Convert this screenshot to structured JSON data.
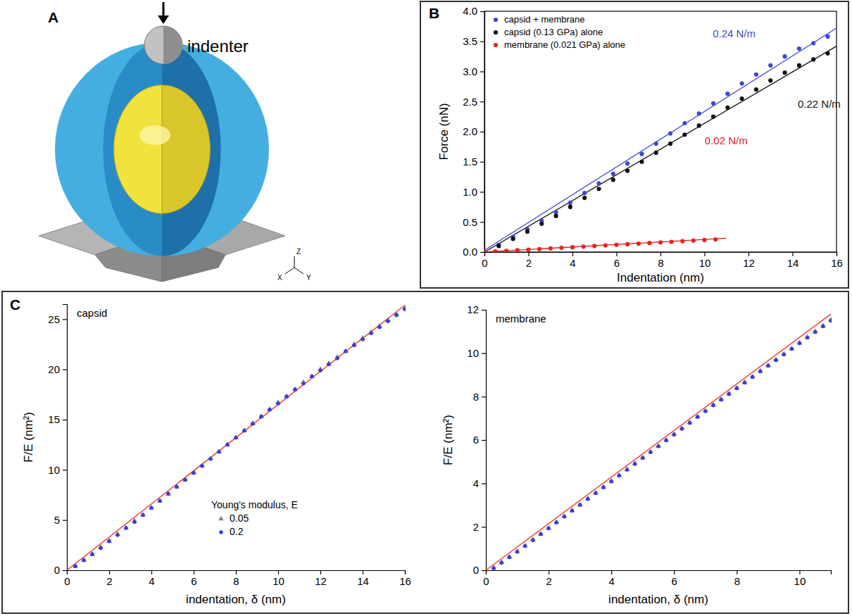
{
  "panel_letters": [
    "A",
    "B",
    "C"
  ],
  "diagram": {
    "label": "indenter",
    "axes": [
      "X",
      "Y",
      "Z"
    ]
  },
  "chart_data": [
    {
      "type": "scatter",
      "x_label": "Indentation (nm)",
      "y_label": "Force (nN)",
      "xlim": [
        0,
        16
      ],
      "ylim": [
        0,
        4
      ],
      "xticks": [
        0,
        2,
        4,
        6,
        8,
        10,
        12,
        14,
        16
      ],
      "yticks": [
        {
          "value": 0,
          "label": "0.0"
        },
        {
          "value": 0.5,
          "label": "0.5"
        },
        {
          "value": 1,
          "label": "1.0"
        },
        {
          "value": 1.5,
          "label": "1.5"
        },
        {
          "value": 2,
          "label": "2.0"
        },
        {
          "value": 2.5,
          "label": "2.5"
        },
        {
          "value": 3,
          "label": "3.0"
        },
        {
          "value": 3.5,
          "label": "3.5"
        },
        {
          "value": 4,
          "label": "4.0"
        }
      ],
      "legend": "top-left",
      "series": [
        {
          "name": "capsid + membrane",
          "color": "#3f48cc",
          "marker": "circle",
          "x": [
            0.65,
            1.3,
            1.95,
            2.6,
            3.25,
            3.9,
            4.55,
            5.2,
            5.85,
            6.5,
            7.15,
            7.8,
            8.45,
            9.1,
            9.75,
            10.4,
            11.05,
            11.7,
            12.35,
            13.0,
            13.65,
            14.3,
            14.95,
            15.6
          ],
          "values": [
            0.12,
            0.25,
            0.38,
            0.52,
            0.66,
            0.82,
            0.98,
            1.14,
            1.3,
            1.47,
            1.63,
            1.8,
            1.97,
            2.14,
            2.3,
            2.47,
            2.63,
            2.8,
            2.95,
            3.1,
            3.25,
            3.38,
            3.47,
            3.58
          ],
          "fit": {
            "x": [
              0,
              16
            ],
            "values": [
              0.03,
              3.72
            ],
            "label": "0.24 N/m"
          }
        },
        {
          "name": "capsid (0.13 GPa) alone",
          "color": "#111111",
          "marker": "circle",
          "x": [
            0.65,
            1.3,
            1.95,
            2.6,
            3.25,
            3.9,
            4.55,
            5.2,
            5.85,
            6.5,
            7.15,
            7.8,
            8.45,
            9.1,
            9.75,
            10.4,
            11.05,
            11.7,
            12.35,
            13.0,
            13.65,
            14.3,
            14.95,
            15.6
          ],
          "values": [
            0.1,
            0.22,
            0.34,
            0.47,
            0.6,
            0.75,
            0.9,
            1.05,
            1.2,
            1.35,
            1.5,
            1.65,
            1.8,
            1.95,
            2.1,
            2.25,
            2.4,
            2.55,
            2.7,
            2.85,
            2.98,
            3.1,
            3.2,
            3.3
          ],
          "fit": {
            "x": [
              0,
              16
            ],
            "values": [
              0,
              3.42
            ],
            "label": "0.22 N/m"
          }
        },
        {
          "name": "membrane (0.021 GPa) alone",
          "color": "#e8231f",
          "marker": "circle",
          "x": [
            0,
            0.5,
            1,
            1.5,
            2,
            2.5,
            3,
            3.5,
            4,
            4.5,
            5,
            5.5,
            6,
            6.5,
            7,
            7.5,
            8,
            8.5,
            9,
            9.5,
            10,
            10.5
          ],
          "values": [
            0,
            0.01,
            0.02,
            0.03,
            0.04,
            0.05,
            0.06,
            0.07,
            0.08,
            0.09,
            0.1,
            0.11,
            0.12,
            0.13,
            0.14,
            0.15,
            0.16,
            0.17,
            0.18,
            0.19,
            0.2,
            0.21
          ],
          "fit": {
            "x": [
              0,
              11
            ],
            "values": [
              0,
              0.23
            ],
            "label": "0.02 N/m"
          }
        }
      ]
    },
    {
      "type": "scatter",
      "title": "capsid",
      "x_label": "indentation, δ (nm)",
      "y_label": "F/E (nm²)",
      "xlim": [
        0,
        16
      ],
      "ylim": [
        0,
        26.5
      ],
      "xticks": [
        0,
        2,
        4,
        6,
        8,
        10,
        12,
        14,
        16
      ],
      "yticks": [
        0,
        5,
        10,
        15,
        20,
        25
      ],
      "legend": "bottom-right",
      "legend_title": "Young's modulus, E",
      "x": [
        0.4,
        0.8,
        1.2,
        1.6,
        2.0,
        2.4,
        2.8,
        3.2,
        3.6,
        4.0,
        4.4,
        4.8,
        5.2,
        5.6,
        6.0,
        6.4,
        6.8,
        7.2,
        7.6,
        8.0,
        8.4,
        8.8,
        9.2,
        9.6,
        10.0,
        10.4,
        10.8,
        11.2,
        11.6,
        12.0,
        12.4,
        12.8,
        13.2,
        13.6,
        14.0,
        14.4,
        14.8,
        15.2,
        15.6,
        16.0
      ],
      "fit": {
        "x": [
          0,
          16
        ],
        "values": [
          0,
          26.4
        ],
        "color": "#ee3b32"
      },
      "series": [
        {
          "name": "0.05",
          "color": "#808080",
          "marker": "triangle",
          "values": [
            0.4,
            1.0,
            1.6,
            2.3,
            2.9,
            3.6,
            4.2,
            4.9,
            5.5,
            6.2,
            6.9,
            7.6,
            8.3,
            9.0,
            9.7,
            10.4,
            11.1,
            11.8,
            12.5,
            13.2,
            13.9,
            14.6,
            15.3,
            16.0,
            16.7,
            17.3,
            18.0,
            18.7,
            19.3,
            20.0,
            20.6,
            21.2,
            21.8,
            22.5,
            23.1,
            23.7,
            24.3,
            24.9,
            25.5,
            26.1
          ]
        },
        {
          "name": "0.2",
          "color": "#3d3dd6",
          "marker": "circle",
          "values": [
            0.4,
            1.0,
            1.6,
            2.2,
            2.9,
            3.5,
            4.2,
            4.8,
            5.5,
            6.2,
            6.9,
            7.6,
            8.3,
            9.0,
            9.7,
            10.4,
            11.1,
            11.8,
            12.5,
            13.2,
            13.9,
            14.6,
            15.3,
            16.0,
            16.6,
            17.3,
            18.0,
            18.6,
            19.3,
            19.9,
            20.5,
            21.1,
            21.8,
            22.4,
            23.0,
            23.6,
            24.2,
            24.8,
            25.4,
            26.0
          ]
        }
      ]
    },
    {
      "type": "scatter",
      "title": "membrane",
      "x_label": "indentation, δ (nm)",
      "y_label": "F/E (nm²)",
      "xlim": [
        0,
        11
      ],
      "ylim": [
        0,
        12
      ],
      "xticks": [
        0,
        2,
        4,
        6,
        8,
        10
      ],
      "yticks": [
        0,
        2,
        4,
        6,
        8,
        10,
        12
      ],
      "x": [
        0.25,
        0.5,
        0.75,
        1.0,
        1.25,
        1.5,
        1.75,
        2.0,
        2.25,
        2.5,
        2.75,
        3.0,
        3.25,
        3.5,
        3.75,
        4.0,
        4.25,
        4.5,
        4.75,
        5.0,
        5.25,
        5.5,
        5.75,
        6.0,
        6.25,
        6.5,
        6.75,
        7.0,
        7.25,
        7.5,
        7.75,
        8.0,
        8.25,
        8.5,
        8.75,
        9.0,
        9.25,
        9.5,
        9.75,
        10.0,
        10.25,
        10.5,
        10.75,
        11.0
      ],
      "fit": {
        "x": [
          0,
          11
        ],
        "values": [
          0,
          11.8
        ],
        "color": "#ee3b32"
      },
      "series": [
        {
          "color": "#808080",
          "marker": "triangle",
          "values": [
            0.1,
            0.36,
            0.61,
            0.87,
            1.13,
            1.4,
            1.67,
            1.94,
            2.21,
            2.48,
            2.75,
            3.02,
            3.29,
            3.56,
            3.83,
            4.1,
            4.37,
            4.64,
            4.91,
            5.18,
            5.45,
            5.72,
            5.99,
            6.26,
            6.53,
            6.8,
            7.07,
            7.34,
            7.61,
            7.87,
            8.13,
            8.39,
            8.65,
            8.91,
            9.17,
            9.43,
            9.69,
            9.95,
            10.21,
            10.47,
            10.73,
            10.99,
            11.25,
            11.52
          ]
        },
        {
          "color": "#3d3dd6",
          "marker": "circle",
          "values": [
            0.1,
            0.35,
            0.6,
            0.85,
            1.12,
            1.39,
            1.66,
            1.93,
            2.2,
            2.47,
            2.74,
            3.01,
            3.28,
            3.55,
            3.82,
            4.09,
            4.36,
            4.63,
            4.9,
            5.17,
            5.44,
            5.71,
            5.98,
            6.25,
            6.52,
            6.79,
            7.06,
            7.33,
            7.6,
            7.86,
            8.12,
            8.38,
            8.64,
            8.9,
            9.16,
            9.42,
            9.68,
            9.94,
            10.2,
            10.46,
            10.72,
            10.98,
            11.24,
            11.5
          ]
        }
      ]
    }
  ]
}
